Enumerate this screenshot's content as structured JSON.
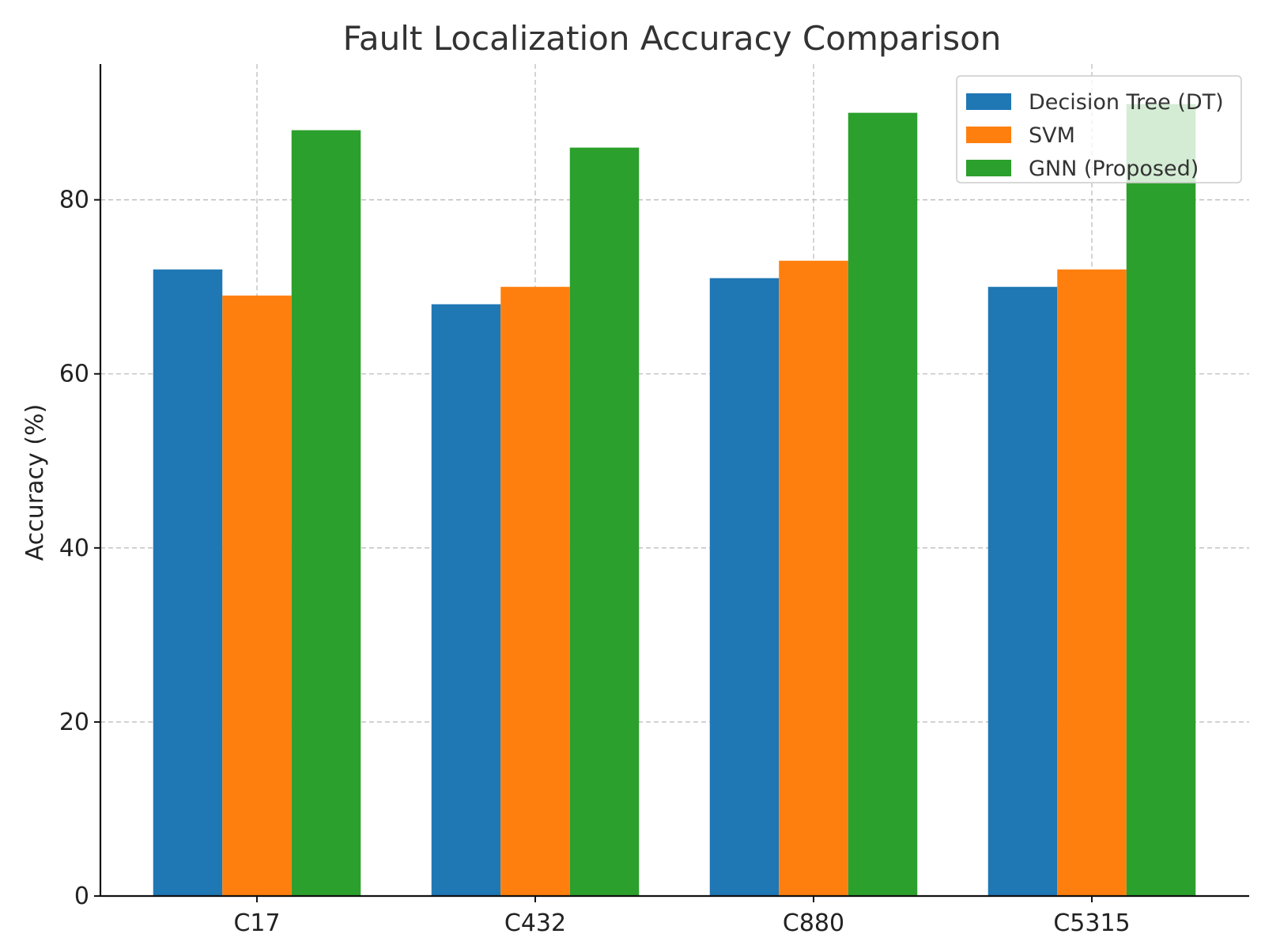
{
  "chart_data": {
    "type": "bar",
    "title": "Fault Localization Accuracy Comparison",
    "xlabel": "",
    "ylabel": "Accuracy (%)",
    "categories": [
      "C17",
      "C432",
      "C880",
      "C5315"
    ],
    "series": [
      {
        "name": "Decision Tree (DT)",
        "values": [
          72,
          68,
          71,
          70
        ],
        "color": "#1f77b4"
      },
      {
        "name": "SVM",
        "values": [
          69,
          70,
          73,
          72
        ],
        "color": "#ff7f0e"
      },
      {
        "name": "GNN (Proposed)",
        "values": [
          88,
          86,
          90,
          91
        ],
        "color": "#2ca02c"
      }
    ],
    "ylim": [
      0,
      95.6
    ],
    "yticks": [
      0,
      20,
      40,
      60,
      80
    ],
    "grid": true,
    "legend_position": "top-right"
  }
}
